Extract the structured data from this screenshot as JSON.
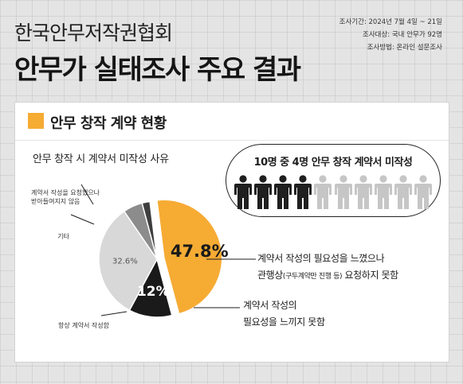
{
  "header": {
    "org_name": "한국안무저작권협회",
    "headline": "안무가 실태조사 주요 결과",
    "meta": [
      "조사기간: 2024년 7월 4일 ~ 21일",
      "조사대상: 국내 안무가 92명",
      "조사방법: 온라인 설문조사"
    ]
  },
  "section": {
    "title": "안무 창작 계약 현황"
  },
  "icon_panel": {
    "title": "10명 중 4명 안무 창작 계약서 미작성",
    "total": 10,
    "highlighted": 4,
    "icon": "person-icon",
    "colors": {
      "highlighted": "#1f1f1f",
      "other": "#c6c6c6"
    }
  },
  "chart_data": {
    "type": "pie",
    "title": "안무 창작 시 계약서 미작성 사유",
    "slices": [
      {
        "label": "계약서 작성의 필요성을 느꼈으나 관행상(구두계약만 진행 등) 요청하지 못함",
        "value": 47.8,
        "value_label": "47.8%",
        "color": "#f6ab33",
        "exploded": true
      },
      {
        "label": "계약서 작성의 필요성을 느끼지 못함",
        "value": 12,
        "value_label": "12%",
        "color": "#1a1a1a"
      },
      {
        "label": "항상 계약서 작성함",
        "value": 32.6,
        "value_label": "32.6%",
        "color": "#d8d8d8"
      },
      {
        "label": "기타",
        "value": 5.4,
        "value_label": "",
        "color": "#8c8c8c"
      },
      {
        "label": "계약서 작성을 요청했으나 받아들여지지 않음",
        "value": 2.2,
        "value_label": "",
        "color": "#3e3e3e"
      }
    ],
    "labels": {
      "small_left_1": [
        "계약서 작성을 요청했으나",
        "받아들여지지 않음"
      ],
      "small_left_2": "기타",
      "small_left_3": "항상 계약서 작성함"
    },
    "callouts": {
      "main_line1": "계약서 작성의 필요성을 느꼈으나",
      "main_line2_a": "관행상",
      "main_line2_small": "(구두계약만 진행 등)",
      "main_line2_b": " 요청하지 못함",
      "second_line1": "계약서 작성의",
      "second_line2": "필요성을 느끼지 못함"
    }
  }
}
